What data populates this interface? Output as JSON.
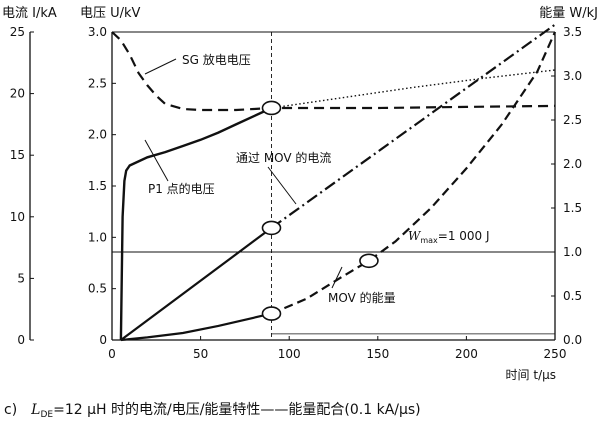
{
  "chart_data": {
    "type": "line",
    "x_axis": {
      "label": "时间 t/μs",
      "range": [
        0,
        250
      ],
      "ticks": [
        "0",
        "50",
        "100",
        "150",
        "200",
        "250"
      ]
    },
    "y_axes": {
      "current": {
        "label": "电流 I/kA",
        "range": [
          0,
          25
        ],
        "ticks": [
          "0",
          "5",
          "10",
          "15",
          "20",
          "25"
        ]
      },
      "voltage": {
        "label": "电压 U/kV",
        "range": [
          0,
          3.0
        ],
        "ticks": [
          "0",
          "0.5",
          "1.0",
          "1.5",
          "2.0",
          "2.5",
          "3.0"
        ]
      },
      "energy": {
        "label": "能量 W/kJ",
        "range": [
          0,
          3.5
        ],
        "ticks": [
          "0.0",
          "0.5",
          "1.0",
          "1.5",
          "2.0",
          "2.5",
          "3.0",
          "3.5"
        ]
      }
    },
    "grid": false,
    "series": [
      {
        "name": "SG 放电电压",
        "axis": "voltage",
        "style": "dashed",
        "x": [
          0,
          5,
          10,
          15,
          20,
          25,
          30,
          40,
          50,
          60,
          70,
          80,
          90,
          120,
          150,
          200,
          250
        ],
        "y": [
          3.0,
          2.92,
          2.78,
          2.6,
          2.48,
          2.38,
          2.3,
          2.25,
          2.24,
          2.24,
          2.24,
          2.25,
          2.26,
          2.26,
          2.26,
          2.27,
          2.28
        ]
      },
      {
        "name": "",
        "axis": "voltage",
        "style": "dotted",
        "x": [
          90,
          130,
          170,
          210,
          250
        ],
        "y": [
          2.26,
          2.36,
          2.46,
          2.55,
          2.63
        ]
      },
      {
        "name": "P1 点的电压",
        "axis": "voltage",
        "style": "solid",
        "x": [
          5,
          6,
          7,
          8,
          10,
          20,
          30,
          40,
          50,
          60,
          70,
          80,
          90
        ],
        "y": [
          0,
          1.2,
          1.55,
          1.65,
          1.7,
          1.78,
          1.83,
          1.89,
          1.95,
          2.02,
          2.1,
          2.18,
          2.26
        ]
      },
      {
        "name": "通过 MOV 的电流",
        "axis": "current",
        "style": "solid+dashdot",
        "x": [
          5,
          90,
          250
        ],
        "y": [
          0,
          9.1,
          25.6
        ]
      },
      {
        "name": "MOV 的能量",
        "axis": "energy",
        "style": "solid+dashed",
        "x": [
          5,
          20,
          40,
          60,
          75,
          90,
          110,
          130,
          145,
          160,
          180,
          200,
          220,
          240,
          250
        ],
        "y": [
          0,
          0.03,
          0.08,
          0.16,
          0.23,
          0.3,
          0.47,
          0.72,
          0.9,
          1.12,
          1.5,
          1.95,
          2.45,
          3.05,
          3.5
        ]
      }
    ],
    "markers": [
      {
        "x": 90,
        "axis": "voltage",
        "y": 2.26
      },
      {
        "x": 90,
        "axis": "current",
        "y": 9.1
      },
      {
        "x": 90,
        "axis": "energy",
        "y": 0.3
      },
      {
        "x": 145,
        "axis": "energy",
        "y": 0.9
      }
    ],
    "reference_lines": [
      {
        "type": "horizontal",
        "axis": "energy",
        "y": 1.0
      },
      {
        "type": "vertical",
        "x": 90
      }
    ],
    "annotations": {
      "sg_voltage": "SG 放电电压",
      "p1_voltage": "P1 点的电压",
      "mov_current": "通过 MOV 的电流",
      "mov_energy": "MOV 的能量",
      "wmax_w": "W",
      "wmax_sub": "max",
      "wmax_value": "=1 000 J"
    },
    "caption": {
      "prefix": "c)",
      "l": "L",
      "l_sub": "DE",
      "text": "=12 μH 时的电流/电压/能量特性——能量配合(0.1 kA/μs)"
    }
  }
}
